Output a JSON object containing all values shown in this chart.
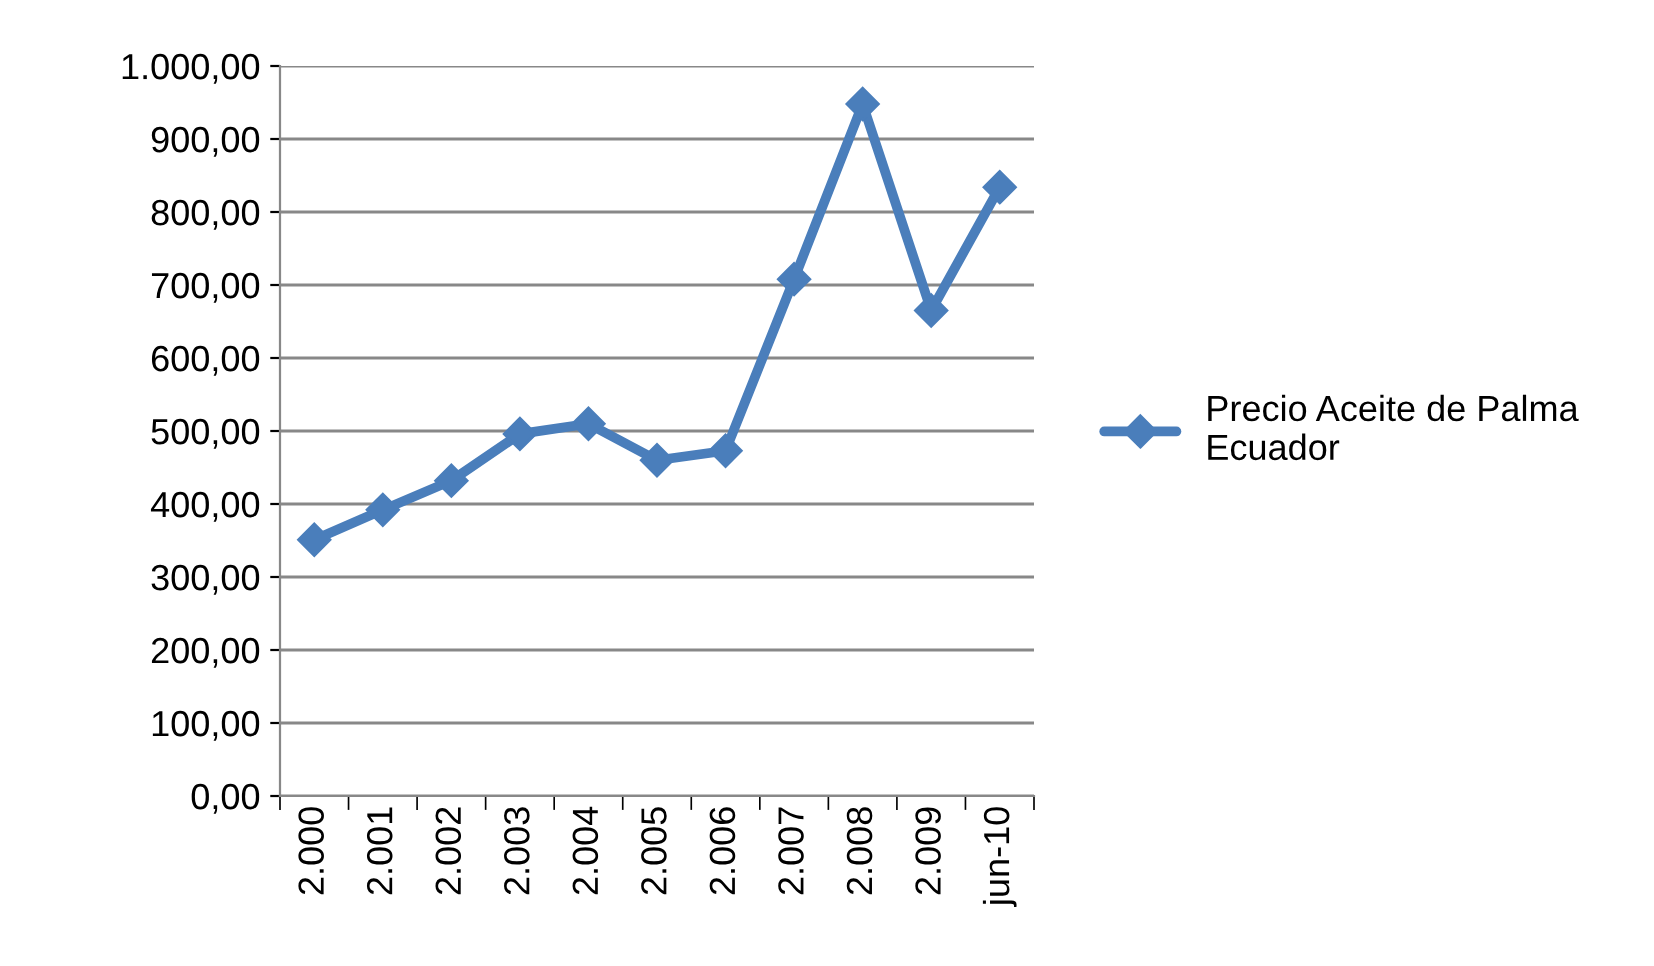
{
  "chart_data": {
    "type": "line",
    "categories": [
      "2.000",
      "2.001",
      "2.002",
      "2.003",
      "2.004",
      "2.005",
      "2.006",
      "2.007",
      "2.008",
      "2.009",
      "jun-10"
    ],
    "series": [
      {
        "name": "Precio Aceite de Palma Ecuador",
        "color": "#4a7ebb",
        "values": [
          351,
          392,
          432,
          496,
          510,
          460,
          473,
          708,
          948,
          665,
          834
        ]
      }
    ],
    "ylim": [
      0,
      1000
    ],
    "yticks": [
      {
        "value": 0,
        "label": "0,00"
      },
      {
        "value": 100,
        "label": "100,00"
      },
      {
        "value": 200,
        "label": "200,00"
      },
      {
        "value": 300,
        "label": "300,00"
      },
      {
        "value": 400,
        "label": "400,00"
      },
      {
        "value": 500,
        "label": "500,00"
      },
      {
        "value": 600,
        "label": "600,00"
      },
      {
        "value": 700,
        "label": "700,00"
      },
      {
        "value": 800,
        "label": "800,00"
      },
      {
        "value": 900,
        "label": "900,00"
      },
      {
        "value": 1000,
        "label": "1.000,00"
      }
    ],
    "grid": "y",
    "legend": "right",
    "marker": "diamond",
    "line_style": "solid"
  }
}
